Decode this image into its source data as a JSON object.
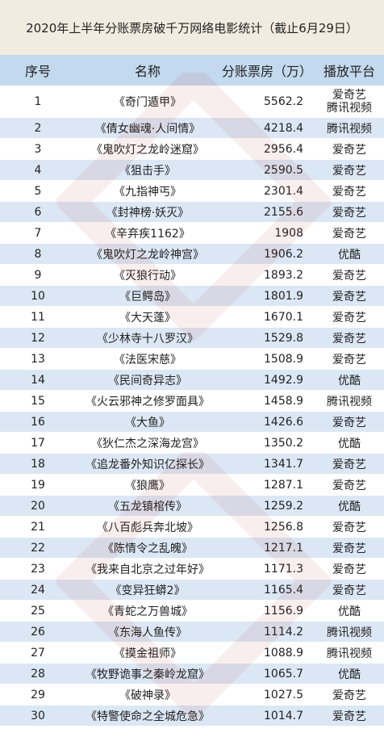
{
  "title": "2020年上半年分账票房破千万网络电影统计（截止6月29日）",
  "headers": [
    "序号",
    "名称",
    "分账票房（万）",
    "播放平台"
  ],
  "rows": [
    {
      "no": "1",
      "name": "《奇门遁甲》",
      "box": "5562.2",
      "platform": "爱奇艺",
      "platform2": "腾讯视频"
    },
    {
      "no": "2",
      "name": "《倩女幽魂·人间情》",
      "box": "4218.4",
      "platform": "腾讯视频"
    },
    {
      "no": "3",
      "name": "《鬼吹灯之龙岭迷窟》",
      "box": "2956.4",
      "platform": "爱奇艺"
    },
    {
      "no": "4",
      "name": "《狙击手》",
      "box": "2590.5",
      "platform": "爱奇艺"
    },
    {
      "no": "5",
      "name": "《九指神丐》",
      "box": "2301.4",
      "platform": "爱奇艺"
    },
    {
      "no": "6",
      "name": "《封神榜·妖灭》",
      "box": "2155.6",
      "platform": "爱奇艺"
    },
    {
      "no": "7",
      "name": "《辛弃疾1162》",
      "box": "1908",
      "platform": "爱奇艺"
    },
    {
      "no": "8",
      "name": "《鬼吹灯之龙岭神宫》",
      "box": "1906.2",
      "platform": "优酷"
    },
    {
      "no": "9",
      "name": "《灭狼行动》",
      "box": "1893.2",
      "platform": "爱奇艺"
    },
    {
      "no": "10",
      "name": "《巨鳄岛》",
      "box": "1801.9",
      "platform": "爱奇艺"
    },
    {
      "no": "11",
      "name": "《大天蓬》",
      "box": "1670.1",
      "platform": "爱奇艺"
    },
    {
      "no": "12",
      "name": "《少林寺十八罗汉》",
      "box": "1529.8",
      "platform": "爱奇艺"
    },
    {
      "no": "13",
      "name": "《法医宋慈》",
      "box": "1508.9",
      "platform": "爱奇艺"
    },
    {
      "no": "14",
      "name": "《民间奇异志》",
      "box": "1492.9",
      "platform": "优酷"
    },
    {
      "no": "15",
      "name": "《火云邪神之修罗面具》",
      "box": "1458.9",
      "platform": "腾讯视频"
    },
    {
      "no": "16",
      "name": "《大鱼》",
      "box": "1426.6",
      "platform": "爱奇艺"
    },
    {
      "no": "17",
      "name": "《狄仁杰之深海龙宫》",
      "box": "1350.2",
      "platform": "优酷"
    },
    {
      "no": "18",
      "name": "《追龙番外知识亿探长》",
      "box": "1341.7",
      "platform": "爱奇艺"
    },
    {
      "no": "19",
      "name": "《狼鹰》",
      "box": "1287.1",
      "platform": "爱奇艺"
    },
    {
      "no": "20",
      "name": "《五龙镇棺传》",
      "box": "1259.2",
      "platform": "优酷"
    },
    {
      "no": "21",
      "name": "《八百彪兵奔北坡》",
      "box": "1256.8",
      "platform": "爱奇艺"
    },
    {
      "no": "22",
      "name": "《陈情令之乱魄》",
      "box": "1217.1",
      "platform": "爱奇艺"
    },
    {
      "no": "23",
      "name": "《我来自北京之过年好》",
      "box": "1171.3",
      "platform": "爱奇艺"
    },
    {
      "no": "24",
      "name": "《变异狂蟒2》",
      "box": "1165.4",
      "platform": "爱奇艺"
    },
    {
      "no": "25",
      "name": "《青蛇之万兽城》",
      "box": "1156.9",
      "platform": "优酷"
    },
    {
      "no": "26",
      "name": "《东海人鱼传》",
      "box": "1114.2",
      "platform": "腾讯视频"
    },
    {
      "no": "27",
      "name": "《摸金祖师》",
      "box": "1088.9",
      "platform": "腾讯视频"
    },
    {
      "no": "28",
      "name": "《牧野诡事之秦岭龙窟》",
      "box": "1065.7",
      "platform": "优酷"
    },
    {
      "no": "29",
      "name": "《破神录》",
      "box": "1027.5",
      "platform": "爱奇艺"
    },
    {
      "no": "30",
      "name": "《特警使命之全城危急》",
      "box": "1014.7",
      "platform": "爱奇艺"
    }
  ]
}
